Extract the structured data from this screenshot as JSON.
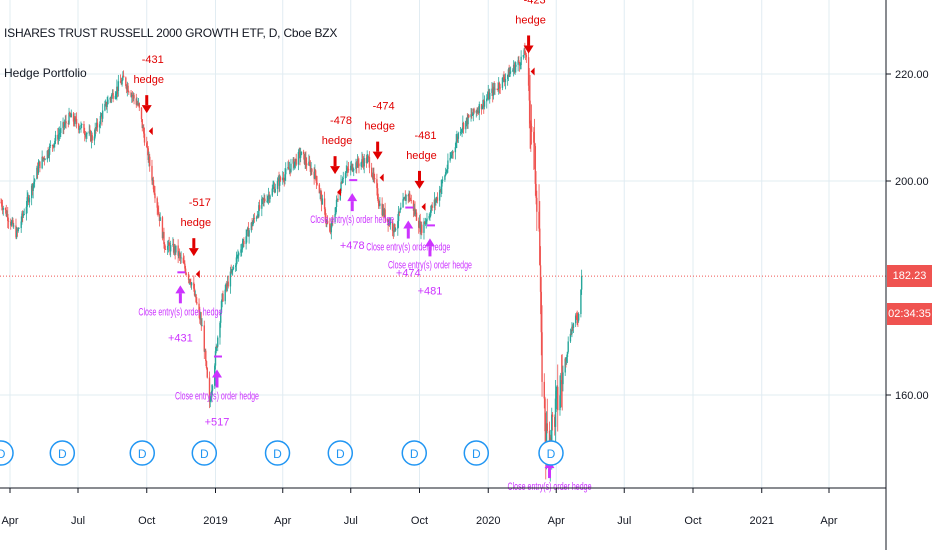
{
  "header": {
    "title": "ISHARES TRUST RUSSELL 2000 GROWTH ETF, D, Cboe BZX",
    "indicator": "Hedge Portfolio"
  },
  "price_tags": {
    "last_price": "182.23",
    "countdown": "02:34:35",
    "color": "#ef5350"
  },
  "colors": {
    "up": "#26a69a",
    "down": "#ef5350",
    "hedge": "#e00000",
    "close": "#cc33ff",
    "dividend": "#2196f3"
  },
  "chart_data": {
    "type": "candlestick",
    "title": "ISHARES TRUST RUSSELL 2000 GROWTH ETF, D, Cboe BZX",
    "x_tick_labels": [
      "Apr",
      "Jul",
      "Oct",
      "2019",
      "Apr",
      "Jul",
      "Oct",
      "2020",
      "Apr",
      "Jul",
      "Oct",
      "2021",
      "Apr"
    ],
    "y_tick_labels": [
      "160.00",
      "200.00",
      "220.00"
    ],
    "ylim": [
      151,
      239
    ],
    "last_price": 182.23,
    "grid": true,
    "price_path": [
      [
        "2018-03-20",
        196
      ],
      [
        "2018-04-10",
        190
      ],
      [
        "2018-05-10",
        203
      ],
      [
        "2018-06-20",
        212
      ],
      [
        "2018-07-20",
        208
      ],
      [
        "2018-08-10",
        215
      ],
      [
        "2018-08-31",
        219
      ],
      [
        "2018-09-20",
        214
      ],
      [
        "2018-10-05",
        203
      ],
      [
        "2018-10-25",
        188
      ],
      [
        "2018-11-10",
        187
      ],
      [
        "2018-11-30",
        181
      ],
      [
        "2018-12-15",
        172
      ],
      [
        "2018-12-24",
        158
      ],
      [
        "2019-01-10",
        178
      ],
      [
        "2019-02-05",
        188
      ],
      [
        "2019-03-05",
        196
      ],
      [
        "2019-04-25",
        205
      ],
      [
        "2019-05-15",
        201
      ],
      [
        "2019-06-03",
        190
      ],
      [
        "2019-06-20",
        201
      ],
      [
        "2019-07-05",
        203
      ],
      [
        "2019-07-25",
        204
      ],
      [
        "2019-08-10",
        195
      ],
      [
        "2019-08-28",
        191
      ],
      [
        "2019-09-15",
        198
      ],
      [
        "2019-10-03",
        191
      ],
      [
        "2019-10-25",
        197
      ],
      [
        "2019-11-25",
        210
      ],
      [
        "2019-12-15",
        213
      ],
      [
        "2020-01-15",
        218
      ],
      [
        "2020-02-10",
        222
      ],
      [
        "2020-02-20",
        224
      ],
      [
        "2020-03-02",
        205
      ],
      [
        "2020-03-09",
        192
      ],
      [
        "2020-03-12",
        168
      ],
      [
        "2020-03-18",
        152
      ],
      [
        "2020-03-24",
        153
      ],
      [
        "2020-04-05",
        160
      ],
      [
        "2020-04-20",
        172
      ],
      [
        "2020-05-01",
        175
      ],
      [
        "2020-05-05",
        182.23
      ]
    ],
    "signals": [
      {
        "date": "2018-10-01",
        "label": "-431",
        "kind": "hedge",
        "text": "hedge"
      },
      {
        "date": "2018-12-03",
        "label": "-517",
        "kind": "hedge",
        "text": "hedge"
      },
      {
        "date": "2019-06-10",
        "label": "-478",
        "kind": "hedge",
        "text": "hedge"
      },
      {
        "date": "2019-08-06",
        "label": "-474",
        "kind": "hedge",
        "text": "hedge"
      },
      {
        "date": "2019-10-01",
        "label": "-481",
        "kind": "hedge",
        "text": "hedge"
      },
      {
        "date": "2020-02-24",
        "label": "-423",
        "kind": "hedge",
        "text": "hedge"
      },
      {
        "date": "2018-11-15",
        "label": "+431",
        "kind": "close",
        "text": "Close entry(s) order hedge"
      },
      {
        "date": "2019-01-03",
        "label": "+517",
        "kind": "close",
        "text": "Close entry(s) order hedge"
      },
      {
        "date": "2019-07-03",
        "label": "+478",
        "kind": "close",
        "text": "Close entry(s) order hedge"
      },
      {
        "date": "2019-09-16",
        "label": "+474",
        "kind": "close",
        "text": "Close entry(s) order hedge"
      },
      {
        "date": "2019-10-15",
        "label": "+481",
        "kind": "close",
        "text": "Close entry(s) order hedge"
      },
      {
        "date": "2020-03-23",
        "label": "",
        "kind": "close",
        "text": "Close entry(s) order hedge"
      }
    ],
    "dividends": [
      "2018-03-20",
      "2018-06-10",
      "2018-09-25",
      "2018-12-17",
      "2019-03-25",
      "2019-06-17",
      "2019-09-24",
      "2019-12-16",
      "2020-03-25"
    ],
    "dividend_marker": "D"
  }
}
